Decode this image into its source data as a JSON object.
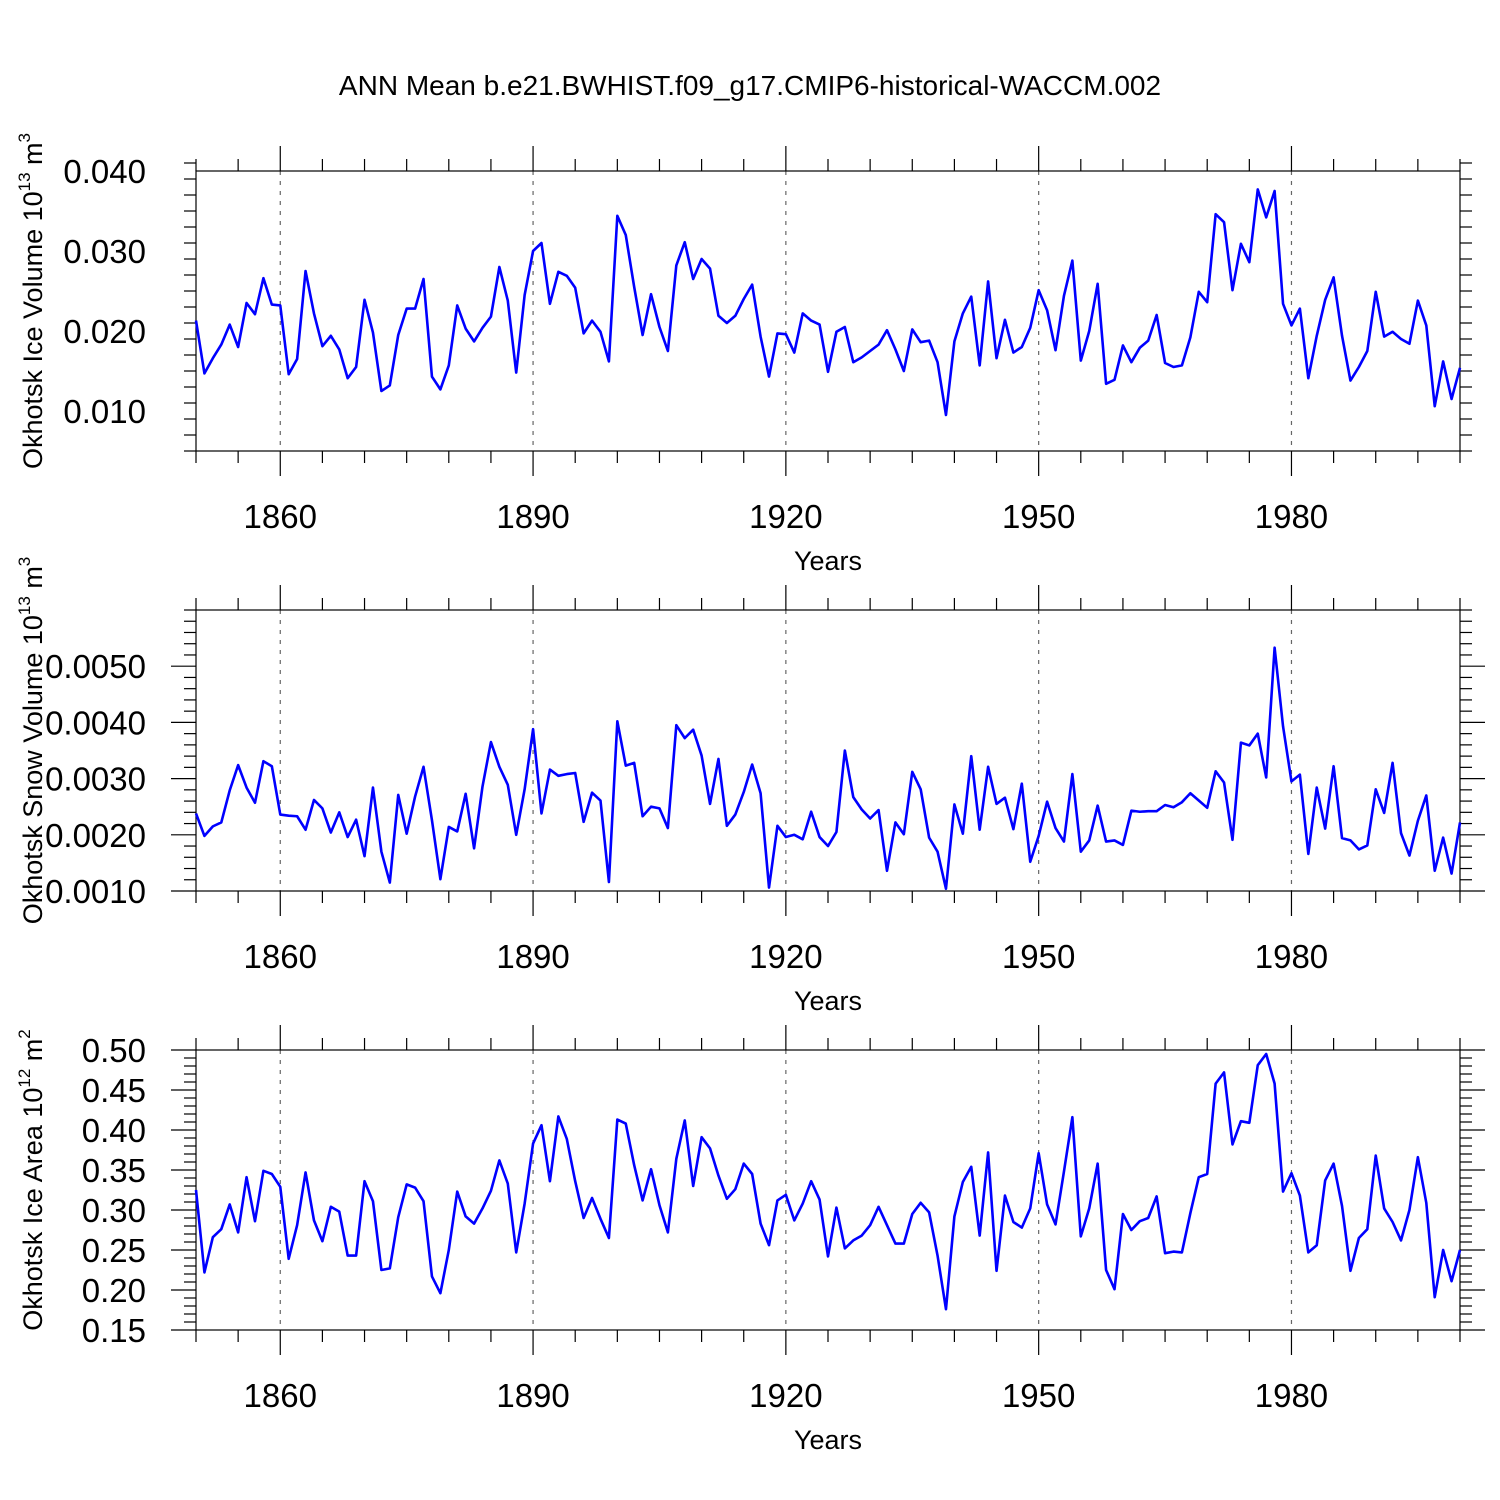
{
  "title": "ANN Mean b.e21.BWHIST.f09_g17.CMIP6-historical-WACCM.002",
  "colors": {
    "line": "#0000ff",
    "frame": "#000000",
    "grid": "#666666"
  },
  "chart_data": [
    {
      "type": "line",
      "name": "ice-volume",
      "ylabel": "Okhotsk Ice Volume 10",
      "ylabel_exp": "13",
      "ylabel_unit": " m",
      "ylabel_unit_exp": "3",
      "xlabel": "Years",
      "xlim": [
        1850,
        2000
      ],
      "ylim": [
        0.005,
        0.04
      ],
      "yticks": [
        0.01,
        0.02,
        0.03,
        0.04
      ],
      "ytick_labels": [
        "0.010",
        "0.020",
        "0.030",
        "0.040"
      ],
      "xticks": [
        1860,
        1890,
        1920,
        1950,
        1980
      ],
      "xtick_labels": [
        "1860",
        "1890",
        "1920",
        "1950",
        "1980"
      ],
      "grid": "vertical-dashed",
      "x_start": 1850,
      "values": [
        0.0213,
        0.0147,
        0.0166,
        0.0183,
        0.0208,
        0.018,
        0.0235,
        0.0221,
        0.0266,
        0.0233,
        0.0232,
        0.0146,
        0.0165,
        0.0275,
        0.0222,
        0.0181,
        0.0194,
        0.0177,
        0.0141,
        0.0155,
        0.0239,
        0.0198,
        0.0125,
        0.0132,
        0.0195,
        0.0228,
        0.0228,
        0.0265,
        0.0143,
        0.0127,
        0.0157,
        0.0232,
        0.0203,
        0.0187,
        0.0204,
        0.0218,
        0.028,
        0.0238,
        0.0148,
        0.0245,
        0.03,
        0.031,
        0.0234,
        0.0274,
        0.0269,
        0.0254,
        0.0197,
        0.0213,
        0.0199,
        0.0162,
        0.0344,
        0.032,
        0.0255,
        0.0195,
        0.0246,
        0.0205,
        0.0175,
        0.0282,
        0.0311,
        0.0265,
        0.029,
        0.0278,
        0.0219,
        0.021,
        0.0219,
        0.024,
        0.0258,
        0.0193,
        0.0143,
        0.0197,
        0.0196,
        0.0173,
        0.0222,
        0.0213,
        0.0208,
        0.0149,
        0.0199,
        0.0205,
        0.0161,
        0.0167,
        0.0175,
        0.0183,
        0.0201,
        0.0177,
        0.015,
        0.0202,
        0.0186,
        0.0188,
        0.0161,
        0.0095,
        0.0187,
        0.0222,
        0.0243,
        0.0157,
        0.0262,
        0.0166,
        0.0214,
        0.0173,
        0.018,
        0.0204,
        0.0251,
        0.0226,
        0.0176,
        0.0244,
        0.0288,
        0.0163,
        0.02,
        0.0259,
        0.0134,
        0.0139,
        0.0182,
        0.0161,
        0.0179,
        0.0188,
        0.022,
        0.016,
        0.0155,
        0.0157,
        0.0192,
        0.0249,
        0.0236,
        0.0346,
        0.0336,
        0.0251,
        0.0309,
        0.0286,
        0.0377,
        0.0342,
        0.0375,
        0.0234,
        0.0207,
        0.0228,
        0.0141,
        0.0194,
        0.0239,
        0.0267,
        0.0194,
        0.0138,
        0.0155,
        0.0175,
        0.0249,
        0.0193,
        0.0199,
        0.019,
        0.0184,
        0.0238,
        0.0207,
        0.0106,
        0.0162,
        0.0115,
        0.0154
      ]
    },
    {
      "type": "line",
      "name": "snow-volume",
      "ylabel": "Okhotsk Snow Volume 10",
      "ylabel_exp": "13",
      "ylabel_unit": " m",
      "ylabel_unit_exp": "3",
      "xlabel": "Years",
      "xlim": [
        1850,
        2000
      ],
      "ylim": [
        0.001,
        0.006
      ],
      "yticks": [
        0.001,
        0.002,
        0.003,
        0.004,
        0.005
      ],
      "ytick_labels": [
        "0.0010",
        "0.0020",
        "0.0030",
        "0.0040",
        "0.0050"
      ],
      "xticks": [
        1860,
        1890,
        1920,
        1950,
        1980
      ],
      "xtick_labels": [
        "1860",
        "1890",
        "1920",
        "1950",
        "1980"
      ],
      "grid": "vertical-dashed",
      "x_start": 1850,
      "values": [
        0.00238,
        0.00198,
        0.00215,
        0.00222,
        0.00279,
        0.00324,
        0.00284,
        0.00257,
        0.00331,
        0.00322,
        0.00236,
        0.00234,
        0.00233,
        0.00209,
        0.00262,
        0.00247,
        0.00204,
        0.0024,
        0.00196,
        0.00227,
        0.00162,
        0.00284,
        0.0017,
        0.00115,
        0.00271,
        0.00202,
        0.00268,
        0.00321,
        0.00226,
        0.00121,
        0.00214,
        0.00206,
        0.00273,
        0.00176,
        0.00286,
        0.00365,
        0.00321,
        0.00289,
        0.002,
        0.00281,
        0.00388,
        0.00238,
        0.00316,
        0.00305,
        0.00308,
        0.0031,
        0.00223,
        0.00275,
        0.00261,
        0.00116,
        0.00402,
        0.00323,
        0.00328,
        0.00233,
        0.0025,
        0.00247,
        0.00212,
        0.00395,
        0.00372,
        0.00387,
        0.00341,
        0.00255,
        0.00335,
        0.00216,
        0.00236,
        0.00276,
        0.00325,
        0.00274,
        0.00106,
        0.00216,
        0.00196,
        0.002,
        0.00192,
        0.00241,
        0.00196,
        0.0018,
        0.00205,
        0.0035,
        0.00267,
        0.00245,
        0.00229,
        0.00244,
        0.00136,
        0.00222,
        0.00201,
        0.00312,
        0.00281,
        0.00195,
        0.0017,
        0.00104,
        0.00254,
        0.00202,
        0.0034,
        0.00209,
        0.00321,
        0.00255,
        0.00266,
        0.0021,
        0.00291,
        0.00152,
        0.00198,
        0.00259,
        0.00212,
        0.00188,
        0.00308,
        0.0017,
        0.0019,
        0.00252,
        0.00188,
        0.0019,
        0.00182,
        0.00243,
        0.00241,
        0.00242,
        0.00242,
        0.00253,
        0.00249,
        0.00258,
        0.00274,
        0.00261,
        0.00248,
        0.00313,
        0.00293,
        0.00191,
        0.00364,
        0.00359,
        0.0038,
        0.00302,
        0.00533,
        0.00393,
        0.00295,
        0.00307,
        0.00166,
        0.00284,
        0.00211,
        0.00322,
        0.00194,
        0.0019,
        0.00174,
        0.00181,
        0.00281,
        0.00239,
        0.00328,
        0.00203,
        0.00163,
        0.00225,
        0.0027,
        0.00136,
        0.00195,
        0.00131,
        0.00222
      ]
    },
    {
      "type": "line",
      "name": "ice-area",
      "ylabel": "Okhotsk Ice Area 10",
      "ylabel_exp": "12",
      "ylabel_unit": " m",
      "ylabel_unit_exp": "2",
      "xlabel": "Years",
      "xlim": [
        1850,
        2000
      ],
      "ylim": [
        0.15,
        0.5
      ],
      "yticks": [
        0.15,
        0.2,
        0.25,
        0.3,
        0.35,
        0.4,
        0.45,
        0.5
      ],
      "ytick_labels": [
        "0.15",
        "0.20",
        "0.25",
        "0.30",
        "0.35",
        "0.40",
        "0.45",
        "0.50"
      ],
      "xticks": [
        1860,
        1890,
        1920,
        1950,
        1980
      ],
      "xtick_labels": [
        "1860",
        "1890",
        "1920",
        "1950",
        "1980"
      ],
      "grid": "vertical-dashed",
      "x_start": 1850,
      "values": [
        0.325,
        0.222,
        0.266,
        0.276,
        0.307,
        0.272,
        0.341,
        0.286,
        0.349,
        0.345,
        0.329,
        0.239,
        0.281,
        0.347,
        0.287,
        0.261,
        0.304,
        0.298,
        0.243,
        0.243,
        0.336,
        0.311,
        0.225,
        0.227,
        0.291,
        0.332,
        0.328,
        0.311,
        0.217,
        0.196,
        0.25,
        0.323,
        0.292,
        0.283,
        0.302,
        0.324,
        0.362,
        0.333,
        0.247,
        0.308,
        0.383,
        0.406,
        0.336,
        0.417,
        0.389,
        0.336,
        0.29,
        0.315,
        0.289,
        0.265,
        0.413,
        0.408,
        0.356,
        0.312,
        0.351,
        0.306,
        0.272,
        0.364,
        0.412,
        0.33,
        0.391,
        0.377,
        0.343,
        0.314,
        0.326,
        0.358,
        0.345,
        0.283,
        0.256,
        0.312,
        0.319,
        0.287,
        0.308,
        0.336,
        0.313,
        0.242,
        0.303,
        0.252,
        0.262,
        0.268,
        0.281,
        0.304,
        0.281,
        0.258,
        0.258,
        0.295,
        0.309,
        0.297,
        0.243,
        0.176,
        0.292,
        0.335,
        0.354,
        0.268,
        0.372,
        0.224,
        0.318,
        0.285,
        0.278,
        0.302,
        0.371,
        0.307,
        0.282,
        0.348,
        0.416,
        0.267,
        0.302,
        0.358,
        0.225,
        0.201,
        0.295,
        0.275,
        0.286,
        0.29,
        0.317,
        0.246,
        0.248,
        0.247,
        0.296,
        0.341,
        0.345,
        0.458,
        0.472,
        0.382,
        0.411,
        0.409,
        0.481,
        0.495,
        0.458,
        0.323,
        0.346,
        0.318,
        0.247,
        0.256,
        0.337,
        0.358,
        0.305,
        0.224,
        0.265,
        0.276,
        0.368,
        0.302,
        0.285,
        0.262,
        0.3,
        0.366,
        0.309,
        0.191,
        0.25,
        0.211,
        0.25
      ]
    }
  ]
}
